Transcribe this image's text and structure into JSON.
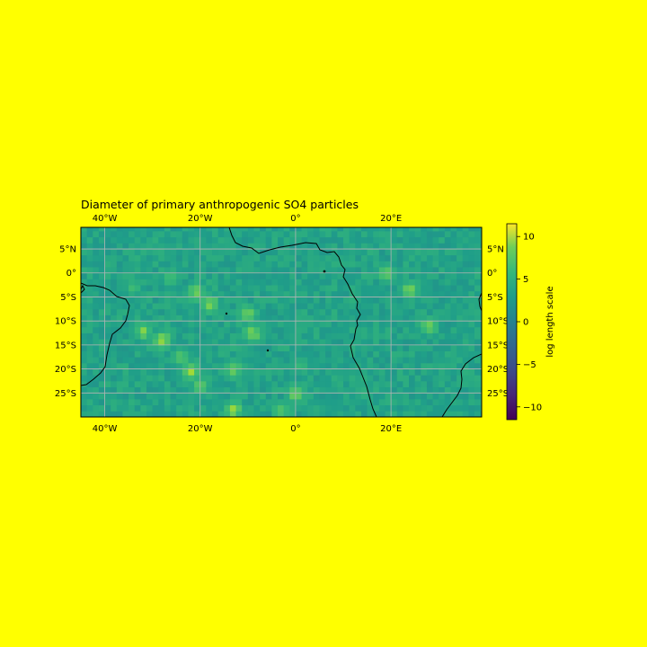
{
  "figure": {
    "background": "#ffff00",
    "title": "Diameter of primary anthropogenic SO4 particles"
  },
  "map": {
    "lon_range": [
      -45,
      39
    ],
    "lat_range": [
      -30,
      9.5
    ],
    "lon_ticks": [
      {
        "value": -40,
        "label": "40°W"
      },
      {
        "value": -20,
        "label": "20°W"
      },
      {
        "value": 0,
        "label": "0°"
      },
      {
        "value": 20,
        "label": "20°E"
      }
    ],
    "lat_ticks": [
      {
        "value": 5,
        "label": "5°N"
      },
      {
        "value": 0,
        "label": "0°"
      },
      {
        "value": -5,
        "label": "5°S"
      },
      {
        "value": -10,
        "label": "10°S"
      },
      {
        "value": -15,
        "label": "15°S"
      },
      {
        "value": -20,
        "label": "20°S"
      },
      {
        "value": -25,
        "label": "25°S"
      }
    ],
    "gridlines": true,
    "coastlines": true,
    "cell_size_deg": 1.25,
    "background_value_range": [
      0.5,
      3.0
    ],
    "hotspots": [
      {
        "lon": -21,
        "lat": -4,
        "value": 8
      },
      {
        "lon": -18,
        "lat": -6.5,
        "value": 9
      },
      {
        "lon": -10,
        "lat": -8.5,
        "value": 8
      },
      {
        "lon": -9,
        "lat": -12.5,
        "value": 8.5
      },
      {
        "lon": -28,
        "lat": -14,
        "value": 9
      },
      {
        "lon": -24,
        "lat": -17.5,
        "value": 7
      },
      {
        "lon": -22,
        "lat": -20.5,
        "value": 9
      },
      {
        "lon": -13,
        "lat": -20,
        "value": 8
      },
      {
        "lon": -20,
        "lat": -23.5,
        "value": 7
      },
      {
        "lon": -13,
        "lat": -28.5,
        "value": 9
      },
      {
        "lon": 0,
        "lat": -25,
        "value": 8
      },
      {
        "lon": -3,
        "lat": -28.5,
        "value": 7
      },
      {
        "lon": 19,
        "lat": 0,
        "value": 7
      },
      {
        "lon": 24,
        "lat": -3.5,
        "value": 8
      },
      {
        "lon": 28,
        "lat": -11,
        "value": 8
      },
      {
        "lon": -32,
        "lat": -12,
        "value": 8
      },
      {
        "lon": -26,
        "lat": -1,
        "value": 6
      },
      {
        "lon": -34,
        "lat": -3,
        "value": 5
      },
      {
        "lon": 1,
        "lat": -19,
        "value": 5
      }
    ]
  },
  "colorbar": {
    "label": "log length scale",
    "range": [
      -11.5,
      11.5
    ],
    "ticks": [
      {
        "value": 10,
        "label": "10"
      },
      {
        "value": 5,
        "label": "5"
      },
      {
        "value": 0,
        "label": "0"
      },
      {
        "value": -5,
        "label": "−5"
      },
      {
        "value": -10,
        "label": "−10"
      }
    ],
    "colormap": "viridis"
  }
}
